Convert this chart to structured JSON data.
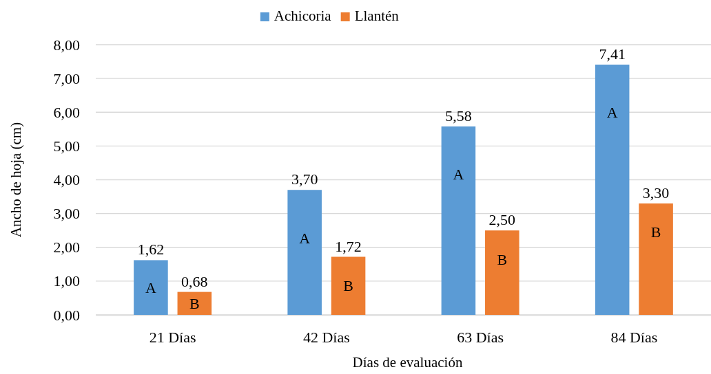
{
  "chart_data": {
    "type": "bar",
    "xlabel": "Días de evaluación",
    "ylabel": "Ancho de hoja (cm)",
    "categories": [
      "21 Días",
      "42 Días",
      "63 Días",
      "84 Días"
    ],
    "series": [
      {
        "name": "Achicoria",
        "color": "#5b9bd5",
        "values": [
          1.62,
          3.7,
          5.58,
          7.41
        ],
        "value_labels": [
          "1,62",
          "3,70",
          "5,58",
          "7,41"
        ]
      },
      {
        "name": "Llantén",
        "color": "#ed7d31",
        "values": [
          0.68,
          1.72,
          2.5,
          3.3
        ],
        "value_labels": [
          "0,68",
          "1,72",
          "2,50",
          "3,30"
        ]
      }
    ],
    "ylim": [
      0,
      8
    ],
    "yticks": [
      {
        "value": 0,
        "label": "0,00"
      },
      {
        "value": 1,
        "label": "1,00"
      },
      {
        "value": 2,
        "label": "2,00"
      },
      {
        "value": 3,
        "label": "3,00"
      },
      {
        "value": 4,
        "label": "4,00"
      },
      {
        "value": 5,
        "label": "5,00"
      },
      {
        "value": 6,
        "label": "6,00"
      },
      {
        "value": 7,
        "label": "7,00"
      },
      {
        "value": 8,
        "label": "8,00"
      }
    ],
    "grid": "y",
    "legend": "top",
    "annotations": [
      "A",
      "B",
      "A",
      "B",
      "A",
      "B",
      "A",
      "B"
    ]
  }
}
